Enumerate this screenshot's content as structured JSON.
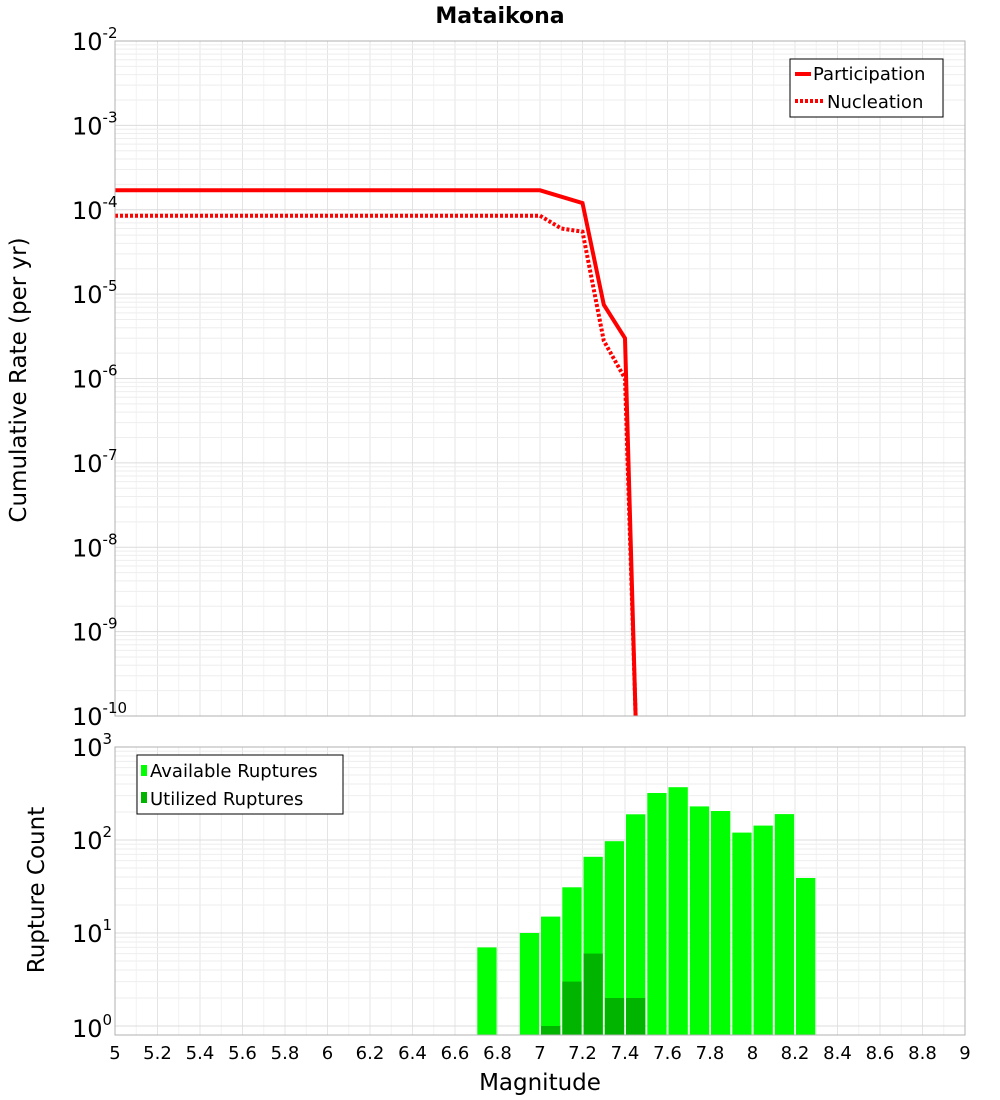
{
  "chart_data": [
    {
      "type": "line",
      "title": "Mataikona",
      "xlabel": "Magnitude",
      "ylabel": "Cumulative Rate (per yr)",
      "yscale": "log",
      "xlim": [
        5,
        9
      ],
      "ylim_exp": [
        -10,
        -2
      ],
      "grid": true,
      "legend_position": "top-right",
      "y_tick_labels": [
        {
          "base": "10",
          "exp": "-2"
        },
        {
          "base": "10",
          "exp": "-3"
        },
        {
          "base": "10",
          "exp": "-4"
        },
        {
          "base": "10",
          "exp": "-5"
        },
        {
          "base": "10",
          "exp": "-6"
        },
        {
          "base": "10",
          "exp": "-7"
        },
        {
          "base": "10",
          "exp": "-8"
        },
        {
          "base": "10",
          "exp": "-9"
        },
        {
          "base": "10",
          "exp": "-10"
        }
      ],
      "series": [
        {
          "name": "Participation",
          "color": "#ff0000",
          "style": "solid",
          "x": [
            5.0,
            7.0,
            7.2,
            7.3,
            7.4,
            7.45
          ],
          "y": [
            0.00017,
            0.00017,
            0.00012,
            7.5e-06,
            3e-06,
            1e-10
          ]
        },
        {
          "name": "Nucleation",
          "color": "#ff0000",
          "style": "dotted",
          "x": [
            5.0,
            7.0,
            7.1,
            7.2,
            7.3,
            7.4,
            7.45
          ],
          "y": [
            8.5e-05,
            8.5e-05,
            6e-05,
            5.5e-05,
            2.8e-06,
            1e-06,
            1e-10
          ]
        }
      ]
    },
    {
      "type": "bar",
      "xlabel": "Magnitude",
      "ylabel": "Rupture Count",
      "yscale": "log",
      "xlim": [
        5,
        9
      ],
      "ylim": [
        0.8,
        1000
      ],
      "grid": true,
      "legend_position": "top-left",
      "x_tick_labels": [
        "5",
        "5.2",
        "5.4",
        "5.6",
        "5.8",
        "6",
        "6.2",
        "6.4",
        "6.6",
        "6.8",
        "7",
        "7.2",
        "7.4",
        "7.6",
        "7.8",
        "8",
        "8.2",
        "8.4",
        "8.6",
        "8.8",
        "9"
      ],
      "y_tick_labels": [
        {
          "base": "10",
          "exp": "3"
        },
        {
          "base": "10",
          "exp": "2"
        },
        {
          "base": "10",
          "exp": "1"
        },
        {
          "base": "10",
          "exp": "0"
        }
      ],
      "series": [
        {
          "name": "Available Ruptures",
          "color": "#00ff00",
          "x": [
            6.75,
            6.95,
            7.05,
            7.15,
            7.25,
            7.35,
            7.45,
            7.55,
            7.65,
            7.75,
            7.85,
            7.95,
            8.05,
            8.15,
            8.25
          ],
          "values": [
            7,
            10,
            15,
            31,
            66,
            97,
            189,
            320,
            370,
            230,
            205,
            120,
            143,
            190,
            39
          ]
        },
        {
          "name": "Utilized Ruptures",
          "color": "#00b400",
          "x": [
            7.05,
            7.15,
            7.25,
            7.35,
            7.45
          ],
          "values": [
            1,
            3,
            6,
            2,
            2
          ]
        }
      ]
    }
  ]
}
